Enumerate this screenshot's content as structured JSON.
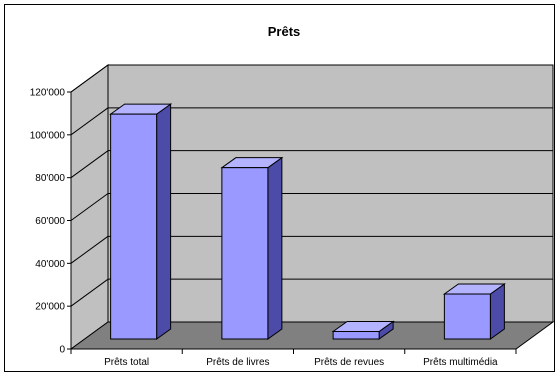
{
  "chart_data": {
    "type": "bar",
    "title": "Prêts",
    "xlabel": "",
    "ylabel": "",
    "categories": [
      "Prêts total",
      "Prêts de livres",
      "Prêts de revues",
      "Prêts multimédia"
    ],
    "values": [
      105000,
      80000,
      3500,
      21000
    ],
    "ylim": [
      0,
      120000
    ],
    "yticks": [
      0,
      20000,
      40000,
      60000,
      80000,
      100000,
      120000
    ],
    "ytick_labels": [
      "0",
      "20'000",
      "40'000",
      "60'000",
      "80'000",
      "100'000",
      "120'000"
    ],
    "grid": true,
    "legend": "none",
    "three_d": true,
    "colors": {
      "bar_front": "#9999FF",
      "bar_top": "#B3B3FF",
      "bar_side": "#4C4CA8",
      "wall": "#C0C0C0",
      "floor": "#808080",
      "grid": "#000000"
    }
  }
}
